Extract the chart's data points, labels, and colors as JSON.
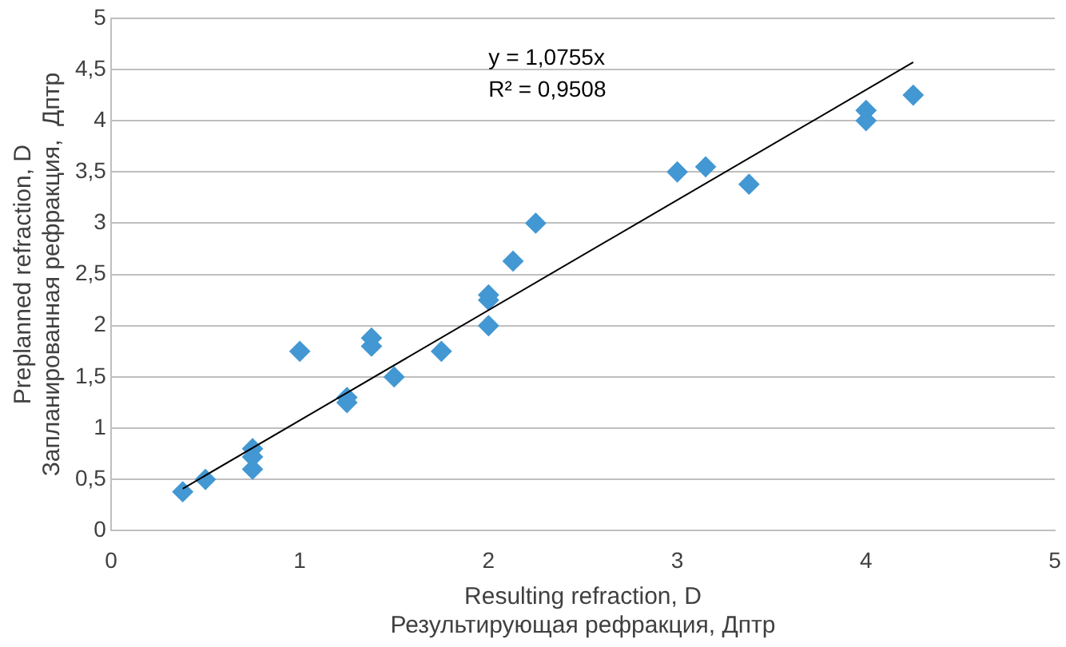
{
  "chart_data": {
    "type": "scatter",
    "xlabel": "Resulting refraction, D\nРезультирующая рефракция, Дптр",
    "ylabel": "Preplanned refraction, D\nЗапланированная рефракция,  Дптр",
    "annotations": [
      "y = 1,0755x",
      "R² = 0,9508"
    ],
    "series": [
      {
        "type": "scatter",
        "color": "#4398d3",
        "marker": "diamond",
        "x": [
          0.38,
          0.5,
          0.75,
          0.75,
          0.75,
          1.0,
          1.25,
          1.25,
          1.38,
          1.38,
          1.5,
          1.75,
          2.0,
          2.0,
          2.0,
          2.13,
          2.25,
          3.0,
          3.15,
          3.38,
          4.0,
          4.0,
          4.25
        ],
        "values": [
          0.38,
          0.5,
          0.8,
          0.72,
          0.6,
          1.75,
          1.3,
          1.25,
          1.88,
          1.8,
          1.5,
          1.75,
          2.3,
          2.25,
          2.0,
          2.63,
          3.0,
          3.5,
          3.55,
          3.38,
          4.1,
          4.0,
          4.25
        ]
      },
      {
        "type": "line",
        "color": "#000000",
        "marker": "none",
        "x": [
          0.38,
          4.25
        ],
        "values": [
          0.41,
          4.57
        ]
      }
    ],
    "xlim": [
      0,
      5
    ],
    "xticks": [
      0,
      1,
      2,
      3,
      4,
      5
    ],
    "ylim": [
      0,
      5
    ],
    "yticks": [
      0,
      {
        "value": 0.5,
        "label": "0,5"
      },
      1,
      {
        "value": 1.5,
        "label": "1,5"
      },
      2,
      {
        "value": 2.5,
        "label": "2,5"
      },
      3,
      {
        "value": 3.5,
        "label": "3,5"
      },
      4,
      {
        "value": 4.5,
        "label": "4,5"
      },
      5
    ],
    "grid": "y",
    "legend": false
  }
}
